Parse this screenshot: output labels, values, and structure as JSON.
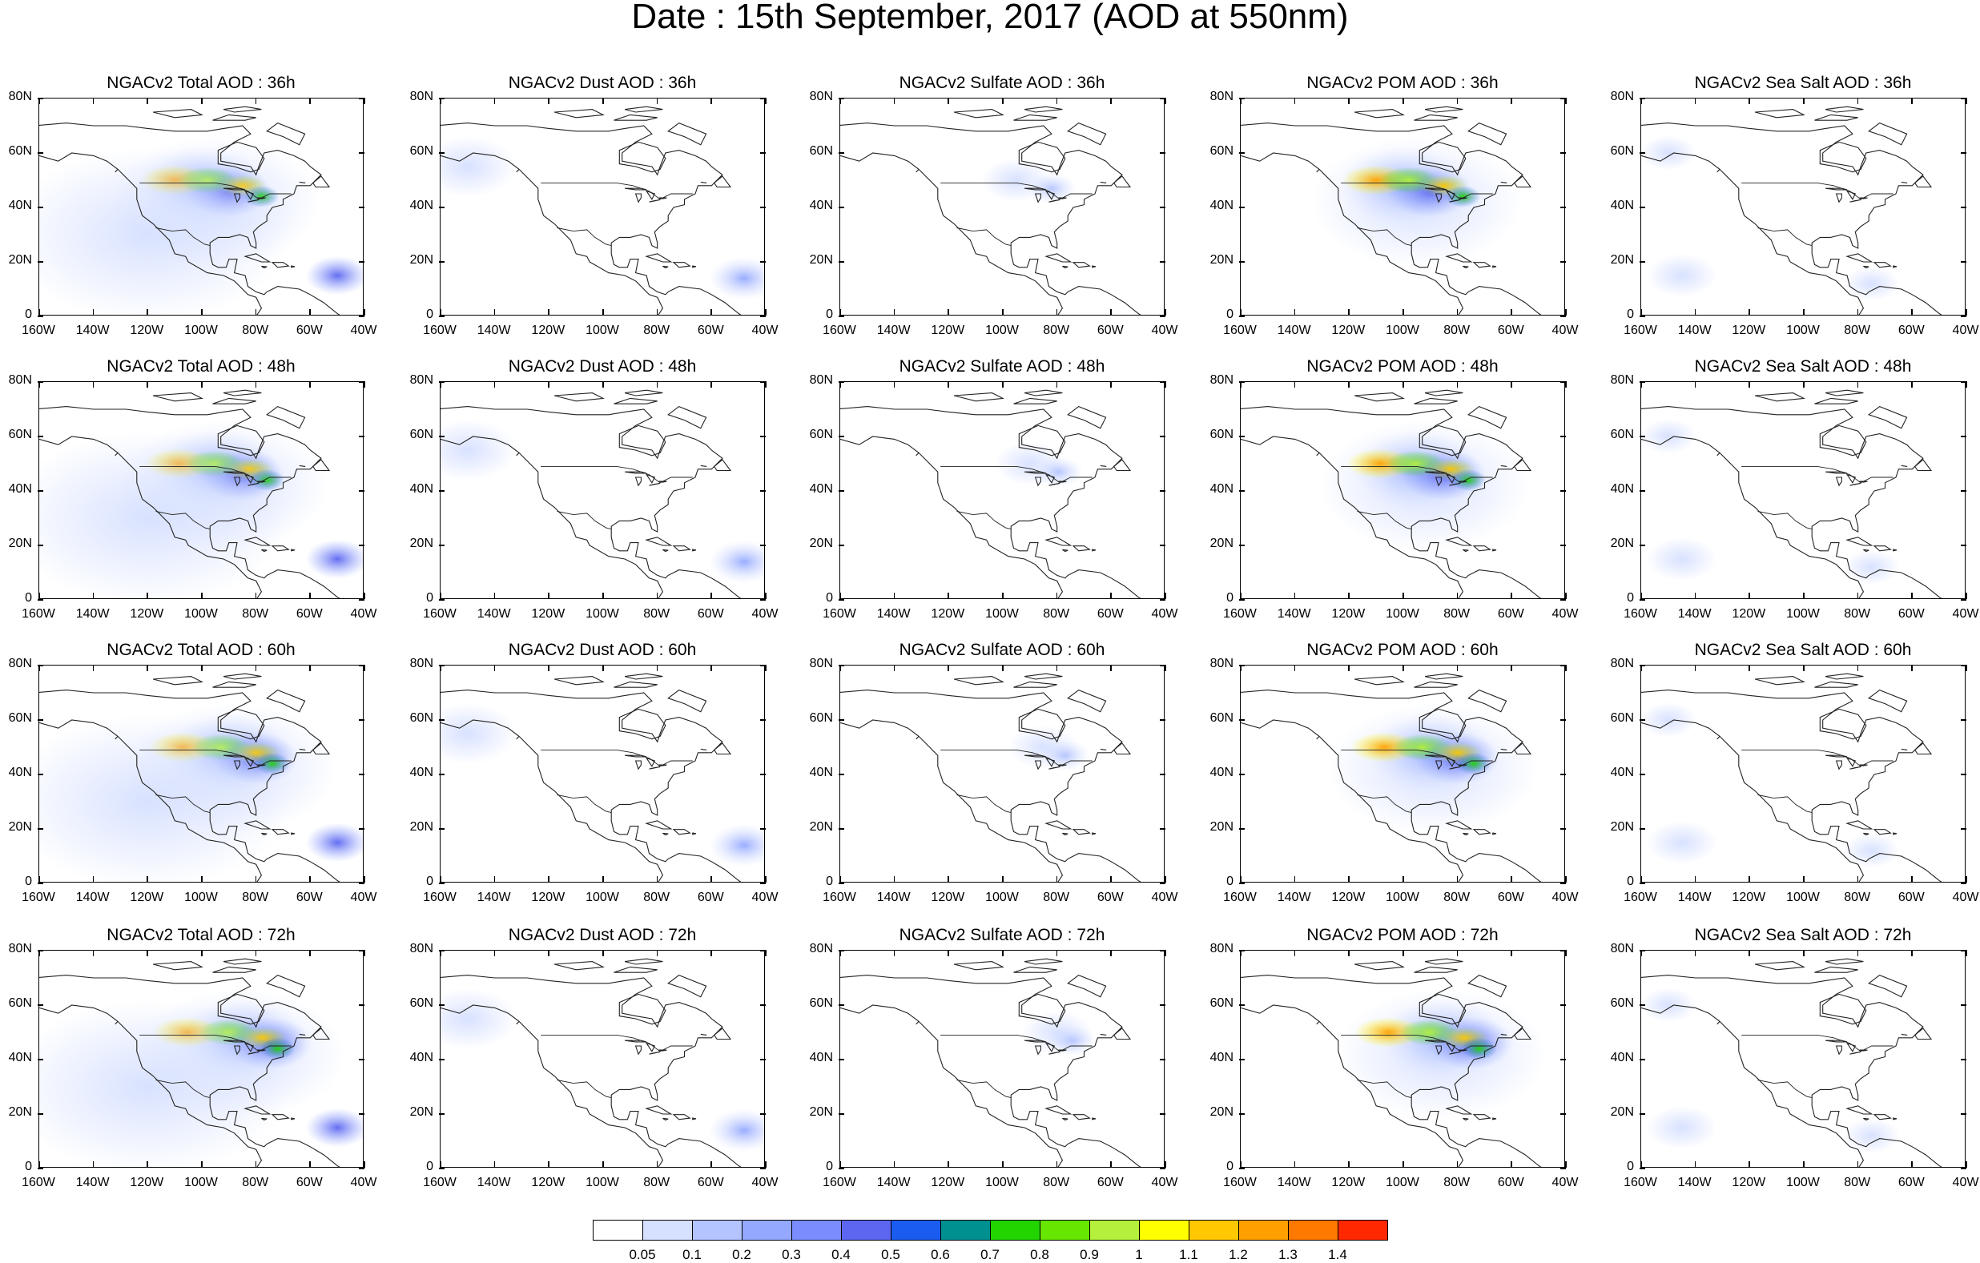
{
  "title": "Date : 15th September, 2017 (AOD at 550nm)",
  "rows": [
    {
      "panels": [
        "NGACv2 Total AOD : 36h",
        "NGACv2 Dust AOD : 36h",
        "NGACv2 Sulfate AOD : 36h",
        "NGACv2 POM AOD : 36h",
        "NGACv2 Sea Salt AOD : 36h"
      ]
    },
    {
      "panels": [
        "NGACv2 Total AOD : 48h",
        "NGACv2 Dust AOD : 48h",
        "NGACv2 Sulfate AOD : 48h",
        "NGACv2 POM AOD : 48h",
        "NGACv2 Sea Salt AOD : 48h"
      ]
    },
    {
      "panels": [
        "NGACv2 Total AOD : 60h",
        "NGACv2 Dust AOD : 60h",
        "NGACv2 Sulfate AOD : 60h",
        "NGACv2 POM AOD : 60h",
        "NGACv2 Sea Salt AOD : 60h"
      ]
    },
    {
      "panels": [
        "NGACv2 Total AOD : 72h",
        "NGACv2 Dust AOD : 72h",
        "NGACv2 Sulfate AOD : 72h",
        "NGACv2 POM AOD : 72h",
        "NGACv2 Sea Salt  AOD : 72h"
      ]
    }
  ],
  "x_ticks": [
    "160W",
    "140W",
    "120W",
    "100W",
    "80W",
    "60W",
    "40W"
  ],
  "y_ticks": [
    "80N",
    "60N",
    "40N",
    "20N",
    "0"
  ],
  "colorbar": {
    "labels": [
      "0.05",
      "0.1",
      "0.2",
      "0.3",
      "0.4",
      "0.5",
      "0.6",
      "0.7",
      "0.8",
      "0.9",
      "1",
      "1.1",
      "1.2",
      "1.3",
      "1.4"
    ],
    "colors": [
      "#ffffff",
      "#d6e0ff",
      "#b4c4ff",
      "#94a8ff",
      "#7b8cff",
      "#5c66f0",
      "#1a5cf0",
      "#00908f",
      "#22d400",
      "#66e600",
      "#b4f03c",
      "#ffff00",
      "#ffc800",
      "#ffa000",
      "#ff7800",
      "#ff2800"
    ]
  },
  "map_legend": {
    "product": "NGACv2",
    "species": [
      "Total",
      "Dust",
      "Sulfate",
      "POM",
      "Sea Salt"
    ]
  }
}
